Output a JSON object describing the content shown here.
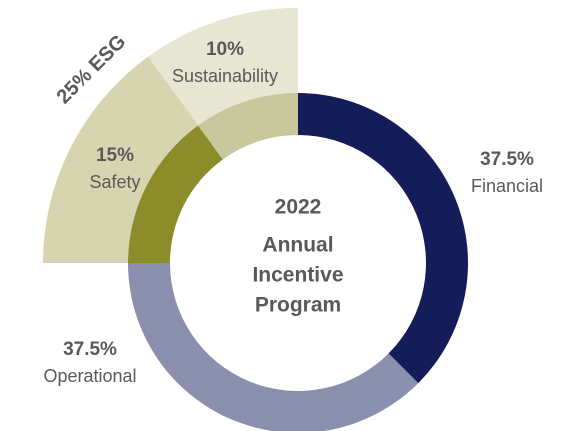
{
  "chart_data": {
    "type": "donut",
    "categories": [
      "Financial",
      "Operational",
      "Safety",
      "Sustainability"
    ],
    "values": [
      37.5,
      37.5,
      15,
      10
    ],
    "value_labels": [
      "37.5%",
      "37.5%",
      "15%",
      "10%"
    ],
    "colors": [
      "#141c5a",
      "#8a8fad",
      "#8c8c2a",
      "#c8c69b"
    ],
    "center_text": [
      "2022",
      "Annual",
      "Incentive",
      "Program"
    ],
    "group": {
      "label": "25% ESG",
      "value": 25,
      "colors": [
        "#d7d5af",
        "#e7e6d2"
      ]
    }
  }
}
